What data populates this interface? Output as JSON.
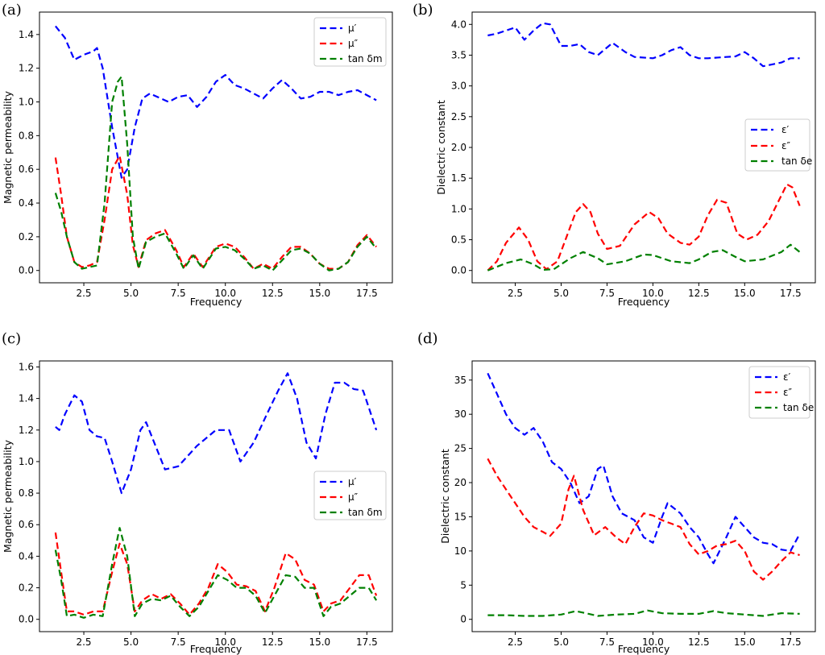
{
  "colors": {
    "mu_prime": "#0000ff",
    "mu_double": "#ff0000",
    "tan": "#008000",
    "frame": "#000000"
  },
  "chart_data": [
    {
      "panel": "(a)",
      "type": "line",
      "xlabel": "Frequency",
      "ylabel": "Magnetic permeability",
      "xlim": [
        0.15,
        18.85
      ],
      "ylim": [
        -0.073,
        1.533
      ],
      "xticks": [
        "2.5",
        "5.0",
        "7.5",
        "10.0",
        "12.5",
        "15.0",
        "17.5"
      ],
      "xtick_values": [
        2.5,
        5.0,
        7.5,
        10.0,
        12.5,
        15.0,
        17.5
      ],
      "yticks": [
        "0.0",
        "0.2",
        "0.4",
        "0.6",
        "0.8",
        "1.0",
        "1.2",
        "1.4"
      ],
      "ytick_values": [
        0.0,
        0.2,
        0.4,
        0.6,
        0.8,
        1.0,
        1.2,
        1.4
      ],
      "legend_position": "top-right",
      "series": [
        {
          "name": "μ′",
          "color": "#0000ff",
          "x": [
            1,
            1.5,
            2,
            2.5,
            3,
            3.2,
            3.5,
            4,
            4.5,
            4.8,
            5.2,
            5.6,
            6,
            7,
            7.5,
            8,
            8.5,
            9,
            9.5,
            10,
            10.5,
            11,
            12,
            12.5,
            13,
            13.5,
            14,
            14.5,
            15,
            15.5,
            16,
            16.5,
            17,
            17.5,
            18
          ],
          "y": [
            1.45,
            1.38,
            1.25,
            1.28,
            1.3,
            1.32,
            1.2,
            0.85,
            0.55,
            0.6,
            0.85,
            1.02,
            1.05,
            1.0,
            1.03,
            1.04,
            0.97,
            1.03,
            1.12,
            1.16,
            1.1,
            1.08,
            1.02,
            1.08,
            1.13,
            1.08,
            1.02,
            1.03,
            1.06,
            1.06,
            1.04,
            1.06,
            1.07,
            1.04,
            1.01
          ]
        },
        {
          "name": "μ″",
          "color": "#ff0000",
          "x": [
            1,
            1.3,
            1.6,
            2,
            2.4,
            2.8,
            3.2,
            3.6,
            4,
            4.4,
            4.8,
            5.1,
            5.4,
            5.8,
            6.3,
            6.8,
            7.4,
            7.8,
            8.3,
            8.8,
            9.5,
            10,
            10.5,
            11,
            11.5,
            12,
            12.5,
            13,
            13.5,
            14,
            14.5,
            15,
            15.5,
            16,
            16.5,
            17,
            17.5,
            18
          ],
          "y": [
            0.67,
            0.45,
            0.2,
            0.05,
            0.02,
            0.03,
            0.05,
            0.3,
            0.6,
            0.68,
            0.45,
            0.15,
            0.02,
            0.18,
            0.22,
            0.24,
            0.12,
            0.02,
            0.1,
            0.02,
            0.14,
            0.16,
            0.14,
            0.08,
            0.01,
            0.04,
            0.01,
            0.08,
            0.14,
            0.14,
            0.1,
            0.04,
            0.01,
            0.01,
            0.05,
            0.15,
            0.21,
            0.14
          ]
        },
        {
          "name": "tan δm",
          "color": "#008000",
          "x": [
            1,
            1.3,
            1.6,
            2,
            2.4,
            2.8,
            3.2,
            3.6,
            4,
            4.3,
            4.5,
            4.8,
            5.1,
            5.4,
            5.8,
            6.3,
            6.8,
            7.4,
            7.8,
            8.3,
            8.8,
            9.5,
            10,
            10.5,
            11,
            11.5,
            12,
            12.5,
            13,
            13.5,
            14,
            14.5,
            15,
            15.5,
            16,
            16.5,
            17,
            17.5,
            18
          ],
          "y": [
            0.46,
            0.35,
            0.2,
            0.05,
            0.01,
            0.02,
            0.03,
            0.4,
            1.0,
            1.12,
            1.15,
            0.75,
            0.2,
            0.01,
            0.17,
            0.2,
            0.22,
            0.1,
            0.01,
            0.09,
            0.01,
            0.13,
            0.14,
            0.12,
            0.07,
            0.01,
            0.03,
            0.0,
            0.06,
            0.12,
            0.13,
            0.1,
            0.04,
            0.0,
            0.01,
            0.05,
            0.14,
            0.2,
            0.13
          ]
        }
      ]
    },
    {
      "panel": "(b)",
      "type": "line",
      "xlabel": "Frequency",
      "ylabel": "Dielectric constant",
      "xlim": [
        0.15,
        18.85
      ],
      "ylim": [
        -0.2,
        4.2
      ],
      "xticks": [
        "2.5",
        "5.0",
        "7.5",
        "10.0",
        "12.5",
        "15.0",
        "17.5"
      ],
      "xtick_values": [
        2.5,
        5.0,
        7.5,
        10.0,
        12.5,
        15.0,
        17.5
      ],
      "yticks": [
        "0.0",
        "0.5",
        "1.0",
        "1.5",
        "2.0",
        "2.5",
        "3.0",
        "3.5",
        "4.0"
      ],
      "ytick_values": [
        0.0,
        0.5,
        1.0,
        1.5,
        2.0,
        2.5,
        3.0,
        3.5,
        4.0
      ],
      "legend_position": "center-right",
      "series": [
        {
          "name": "ε′",
          "color": "#0000ff",
          "x": [
            1,
            1.5,
            2,
            2.5,
            3,
            3.5,
            4,
            4.4,
            5,
            5.5,
            6,
            6.5,
            7,
            7.8,
            8.5,
            9,
            10,
            10.5,
            11,
            11.5,
            12,
            12.5,
            13,
            14,
            14.5,
            15,
            15.5,
            16,
            16.5,
            17,
            17.5,
            18
          ],
          "y": [
            3.82,
            3.85,
            3.9,
            3.95,
            3.75,
            3.9,
            4.02,
            4.0,
            3.65,
            3.65,
            3.68,
            3.55,
            3.5,
            3.7,
            3.55,
            3.47,
            3.45,
            3.5,
            3.58,
            3.63,
            3.5,
            3.45,
            3.45,
            3.47,
            3.48,
            3.55,
            3.45,
            3.32,
            3.35,
            3.38,
            3.45,
            3.45
          ]
        },
        {
          "name": "ε″",
          "color": "#ff0000",
          "x": [
            1,
            1.5,
            2,
            2.7,
            3.2,
            3.7,
            4.2,
            4.8,
            5.3,
            5.8,
            6.2,
            6.6,
            7,
            7.5,
            8.2,
            9,
            9.8,
            10.3,
            10.8,
            11.5,
            12,
            12.5,
            13,
            13.5,
            14,
            14.6,
            15.1,
            15.7,
            16.3,
            16.8,
            17.3,
            17.6,
            18
          ],
          "y": [
            0.0,
            0.15,
            0.45,
            0.7,
            0.5,
            0.15,
            0.02,
            0.15,
            0.55,
            0.95,
            1.08,
            0.95,
            0.6,
            0.35,
            0.4,
            0.75,
            0.95,
            0.85,
            0.6,
            0.45,
            0.42,
            0.55,
            0.9,
            1.15,
            1.1,
            0.6,
            0.5,
            0.58,
            0.8,
            1.1,
            1.4,
            1.35,
            1.05
          ]
        },
        {
          "name": "tan δe",
          "color": "#008000",
          "x": [
            1,
            2,
            2.8,
            3.5,
            4,
            4.6,
            5.5,
            6.2,
            7,
            7.5,
            8.5,
            9.5,
            10,
            11,
            12,
            12.5,
            13.2,
            13.8,
            14.5,
            15,
            16,
            17,
            17.5,
            18
          ],
          "y": [
            0.0,
            0.12,
            0.18,
            0.1,
            0.01,
            0.02,
            0.2,
            0.3,
            0.2,
            0.1,
            0.15,
            0.26,
            0.25,
            0.15,
            0.12,
            0.18,
            0.3,
            0.33,
            0.22,
            0.15,
            0.18,
            0.3,
            0.42,
            0.3
          ]
        }
      ]
    },
    {
      "panel": "(c)",
      "type": "line",
      "xlabel": "Frequency",
      "ylabel": "Magnetic permeability",
      "xlim": [
        0.15,
        18.85
      ],
      "ylim": [
        -0.078,
        1.638
      ],
      "xticks": [
        "2.5",
        "5.0",
        "7.5",
        "10.0",
        "12.5",
        "15.0",
        "17.5"
      ],
      "xtick_values": [
        2.5,
        5.0,
        7.5,
        10.0,
        12.5,
        15.0,
        17.5
      ],
      "yticks": [
        "0.0",
        "0.2",
        "0.4",
        "0.6",
        "0.8",
        "1.0",
        "1.2",
        "1.4",
        "1.6"
      ],
      "ytick_values": [
        0.0,
        0.2,
        0.4,
        0.6,
        0.8,
        1.0,
        1.2,
        1.4,
        1.6
      ],
      "legend_position": "center-right",
      "series": [
        {
          "name": "μ′",
          "color": "#0000ff",
          "x": [
            1,
            1.2,
            1.5,
            2,
            2.4,
            2.8,
            3.2,
            3.6,
            4,
            4.5,
            5,
            5.5,
            5.8,
            6.3,
            6.8,
            7.5,
            8.5,
            9.5,
            10.2,
            10.8,
            11.5,
            12.2,
            12.8,
            13.3,
            13.8,
            14.3,
            14.8,
            15.3,
            15.8,
            16.3,
            16.8,
            17.3,
            18
          ],
          "y": [
            1.22,
            1.2,
            1.3,
            1.42,
            1.38,
            1.2,
            1.16,
            1.15,
            1.0,
            0.8,
            0.95,
            1.2,
            1.25,
            1.1,
            0.95,
            0.97,
            1.1,
            1.2,
            1.2,
            1.0,
            1.12,
            1.3,
            1.45,
            1.56,
            1.4,
            1.12,
            1.02,
            1.3,
            1.5,
            1.5,
            1.46,
            1.45,
            1.2
          ]
        },
        {
          "name": "μ″",
          "color": "#ff0000",
          "x": [
            1,
            1.3,
            1.6,
            2,
            2.5,
            3,
            3.5,
            4,
            4.4,
            4.8,
            5.2,
            5.6,
            6.1,
            6.6,
            7.1,
            7.6,
            8.1,
            8.6,
            9.1,
            9.6,
            10.1,
            10.6,
            11.1,
            11.6,
            12.1,
            12.6,
            13.2,
            13.7,
            14.2,
            14.7,
            15.2,
            15.6,
            16.1,
            16.6,
            17.1,
            17.6,
            18
          ],
          "y": [
            0.55,
            0.3,
            0.05,
            0.05,
            0.03,
            0.05,
            0.05,
            0.3,
            0.48,
            0.35,
            0.05,
            0.12,
            0.16,
            0.13,
            0.16,
            0.1,
            0.03,
            0.1,
            0.2,
            0.35,
            0.3,
            0.22,
            0.21,
            0.18,
            0.05,
            0.2,
            0.42,
            0.38,
            0.25,
            0.22,
            0.05,
            0.1,
            0.12,
            0.2,
            0.28,
            0.28,
            0.15
          ]
        },
        {
          "name": "tan δm",
          "color": "#008000",
          "x": [
            1,
            1.3,
            1.6,
            2,
            2.5,
            3,
            3.5,
            4,
            4.4,
            4.8,
            5.2,
            5.6,
            6.1,
            6.6,
            7.1,
            7.6,
            8.1,
            8.6,
            9.1,
            9.6,
            10.1,
            10.6,
            11.1,
            11.6,
            12.1,
            12.6,
            13.2,
            13.7,
            14.2,
            14.7,
            15.2,
            15.6,
            16.1,
            16.6,
            17.1,
            17.6,
            18
          ],
          "y": [
            0.44,
            0.25,
            0.02,
            0.03,
            0.01,
            0.03,
            0.02,
            0.35,
            0.58,
            0.4,
            0.02,
            0.1,
            0.13,
            0.12,
            0.15,
            0.08,
            0.02,
            0.08,
            0.18,
            0.28,
            0.25,
            0.2,
            0.2,
            0.15,
            0.04,
            0.15,
            0.28,
            0.27,
            0.2,
            0.2,
            0.02,
            0.08,
            0.1,
            0.15,
            0.2,
            0.2,
            0.12
          ]
        }
      ]
    },
    {
      "panel": "(d)",
      "type": "line",
      "xlabel": "Frequency",
      "ylabel": "Dielectric constant",
      "xlim": [
        0.15,
        18.85
      ],
      "ylim": [
        -1.8,
        37.8
      ],
      "xticks": [
        "2.5",
        "5.0",
        "7.5",
        "10.0",
        "12.5",
        "15.0",
        "17.5"
      ],
      "xtick_values": [
        2.5,
        5.0,
        7.5,
        10.0,
        12.5,
        15.0,
        17.5
      ],
      "yticks": [
        "0",
        "5",
        "10",
        "15",
        "20",
        "25",
        "30",
        "35"
      ],
      "ytick_values": [
        0,
        5,
        10,
        15,
        20,
        25,
        30,
        35
      ],
      "legend_position": "top-right",
      "series": [
        {
          "name": "ε′",
          "color": "#0000ff",
          "x": [
            1,
            1.5,
            2,
            2.5,
            3,
            3.5,
            4,
            4.5,
            5,
            5.5,
            6,
            6.5,
            7,
            7.3,
            7.8,
            8.3,
            9,
            9.5,
            10,
            10.5,
            10.8,
            11.5,
            12,
            12.5,
            13,
            13.3,
            14,
            14.5,
            15,
            15.5,
            16,
            16.5,
            17,
            17.5,
            18
          ],
          "y": [
            36,
            33,
            30,
            28,
            27,
            28,
            26,
            23,
            22,
            20,
            17,
            18,
            22,
            22.5,
            18,
            15.5,
            14.5,
            12,
            11.2,
            15,
            17,
            15.5,
            13.5,
            12,
            9.5,
            8.2,
            12,
            15,
            13.5,
            12,
            11.2,
            11,
            10.2,
            10,
            12.5
          ]
        },
        {
          "name": "ε″",
          "color": "#ff0000",
          "x": [
            1,
            1.5,
            2,
            2.5,
            3,
            3.5,
            4,
            4.4,
            5,
            5.4,
            5.7,
            6.2,
            6.8,
            7.4,
            8,
            8.5,
            9,
            9.5,
            10,
            10.5,
            11,
            11.5,
            12,
            12.5,
            13,
            13.5,
            14,
            14.5,
            15,
            15.5,
            16,
            16.5,
            17,
            17.5,
            18
          ],
          "y": [
            23.5,
            21,
            19,
            17,
            15,
            13.5,
            12.8,
            12.2,
            14,
            19,
            21,
            16,
            12.3,
            13.5,
            12,
            11,
            13.5,
            15.5,
            15.2,
            14.5,
            14,
            13.5,
            11,
            9.5,
            10,
            10.8,
            11,
            11.5,
            10,
            7,
            5.8,
            7,
            8.5,
            9.8,
            9.4
          ]
        },
        {
          "name": "tan δe",
          "color": "#008000",
          "x": [
            1,
            2,
            3,
            4,
            5,
            5.8,
            6.5,
            7,
            8,
            9,
            9.7,
            10.5,
            11.5,
            12.5,
            13.3,
            14,
            15,
            16,
            17,
            18
          ],
          "y": [
            0.6,
            0.6,
            0.5,
            0.5,
            0.7,
            1.2,
            0.8,
            0.5,
            0.7,
            0.8,
            1.3,
            0.9,
            0.8,
            0.8,
            1.2,
            0.9,
            0.7,
            0.5,
            0.9,
            0.8
          ]
        }
      ]
    }
  ]
}
